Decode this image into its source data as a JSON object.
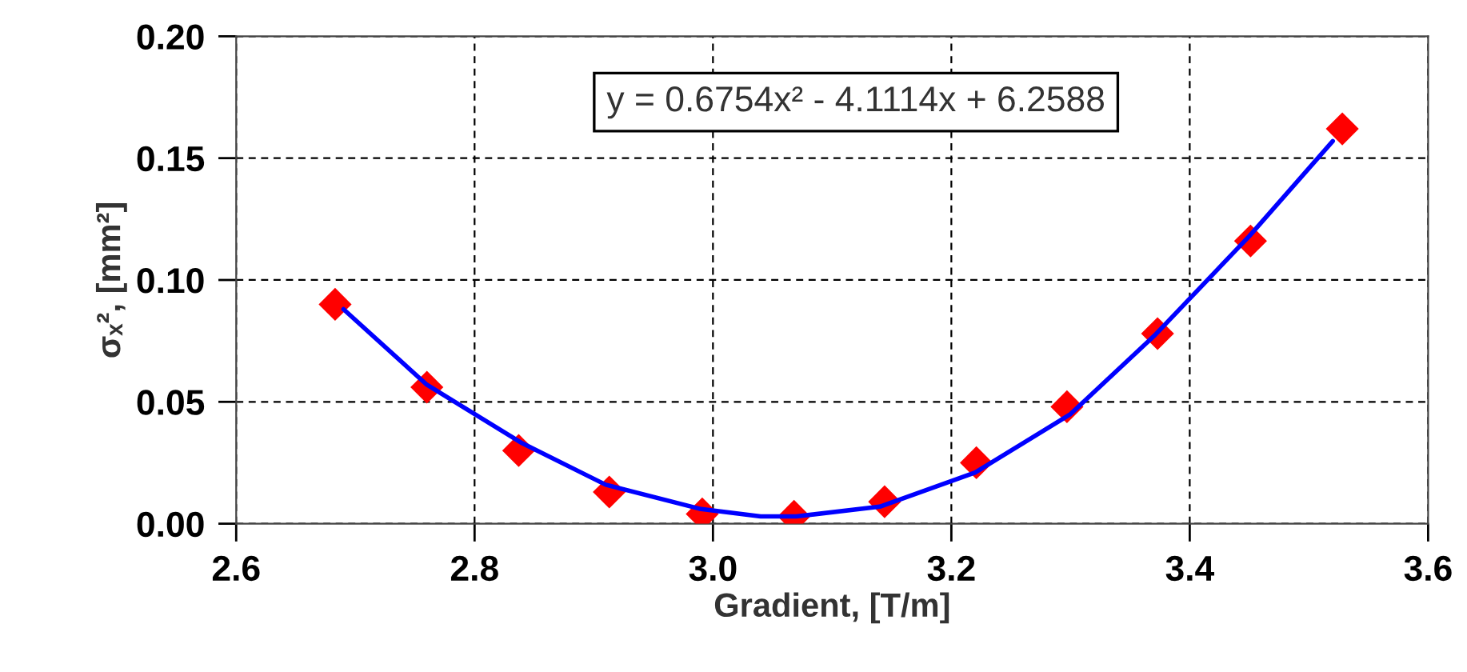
{
  "chart_data": {
    "type": "scatter",
    "xlabel": "Gradient, [T/m]",
    "ylabel": "σₓ², [mm²]",
    "annotations": [
      "y = 0.6754x² - 4.1114x + 6.2588"
    ],
    "series": [
      {
        "color": "#ff0000",
        "marker": "diamond",
        "x": [
          2.683,
          2.76,
          2.837,
          2.913,
          2.991,
          3.068,
          3.144,
          3.221,
          3.297,
          3.373,
          3.451,
          3.528
        ],
        "values": [
          0.09,
          0.056,
          0.03,
          0.013,
          0.004,
          0.003,
          0.009,
          0.025,
          0.048,
          0.078,
          0.116,
          0.162
        ]
      },
      {
        "type": "line",
        "color": "#0000ff",
        "marker": "none",
        "line_style": "solid",
        "x": [
          2.69,
          2.76,
          2.84,
          2.91,
          2.99,
          3.04,
          3.07,
          3.14,
          3.22,
          3.3,
          3.37,
          3.45,
          3.52
        ],
        "values": [
          0.088,
          0.057,
          0.033,
          0.016,
          0.006,
          0.003,
          0.003,
          0.007,
          0.021,
          0.045,
          0.077,
          0.118,
          0.157
        ]
      }
    ],
    "xlim": [
      2.6,
      3.6
    ],
    "xticks": [
      {
        "value": 2.6,
        "label": "2.6"
      },
      {
        "value": 2.8,
        "label": "2.8"
      },
      {
        "value": 3.0,
        "label": "3.0"
      },
      {
        "value": 3.2,
        "label": "3.2"
      },
      {
        "value": 3.4,
        "label": "3.4"
      },
      {
        "value": 3.6,
        "label": "3.6"
      }
    ],
    "ylim": [
      0,
      0.2
    ],
    "yticks": [
      {
        "value": 0,
        "label": "0.00"
      },
      {
        "value": 0.05,
        "label": "0.05"
      },
      {
        "value": 0.1,
        "label": "0.10"
      },
      {
        "value": 0.15,
        "label": "0.15"
      },
      {
        "value": 0.2,
        "label": "0.20"
      }
    ],
    "grid": true,
    "legend": false
  }
}
